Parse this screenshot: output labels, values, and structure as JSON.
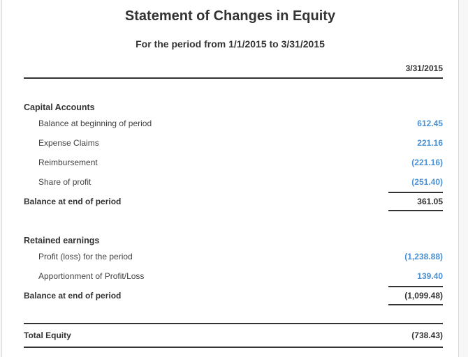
{
  "report": {
    "title": "Statement of Changes in Equity",
    "subtitle": "For the period from 1/1/2015 to 3/31/2015",
    "column_header": "3/31/2015",
    "sections": [
      {
        "heading": "Capital Accounts",
        "rows": [
          {
            "label": "Balance at beginning of period",
            "value": "612.45"
          },
          {
            "label": "Expense Claims",
            "value": "221.16"
          },
          {
            "label": "Reimbursement",
            "value": "(221.16)"
          },
          {
            "label": "Share of profit",
            "value": "(251.40)"
          }
        ],
        "total": {
          "label": "Balance at end of period",
          "value": "361.05"
        }
      },
      {
        "heading": "Retained earnings",
        "rows": [
          {
            "label": "Profit (loss) for the period",
            "value": "(1,238.88)"
          },
          {
            "label": "Apportionment of Profit/Loss",
            "value": "139.40"
          }
        ],
        "total": {
          "label": "Balance at end of period",
          "value": "(1,099.48)"
        }
      }
    ],
    "grand_total": {
      "label": "Total Equity",
      "value": "(738.43)"
    }
  },
  "colors": {
    "value_blue": "#4a90d2",
    "text_dark": "#333333",
    "rule_dark": "#333333",
    "panel_border": "#d9d9d9"
  }
}
